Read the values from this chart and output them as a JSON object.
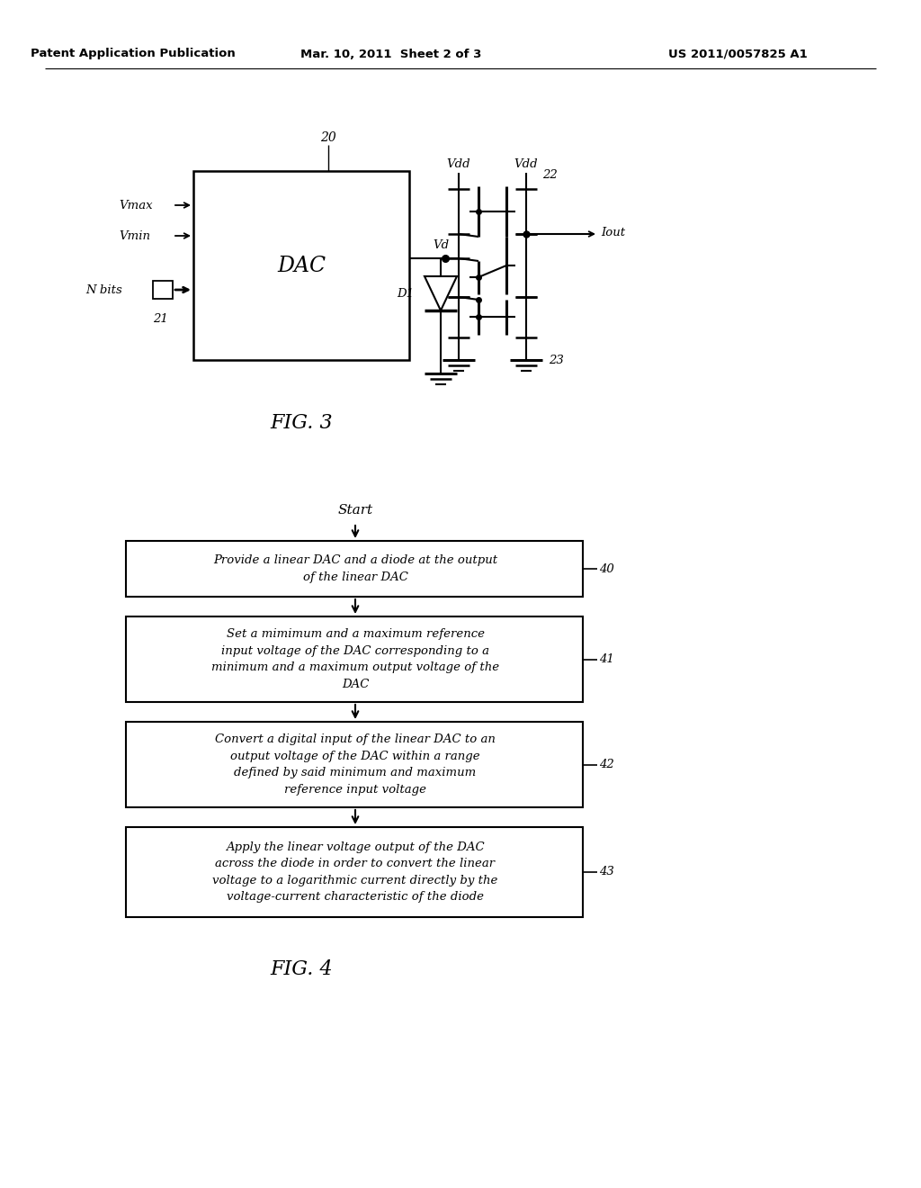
{
  "bg_color": "#ffffff",
  "header_left": "Patent Application Publication",
  "header_center": "Mar. 10, 2011  Sheet 2 of 3",
  "header_right": "US 2011/0057825 A1",
  "fig3_label": "FIG. 3",
  "fig4_label": "FIG. 4",
  "num20": "20",
  "dac_label": "DAC",
  "vmax_label": "Vmax",
  "vmin_label": "Vmin",
  "nbits_label": "N bits",
  "num21": "21",
  "vd_label": "Vd",
  "d1_label": "D1",
  "vdd1_label": "Vdd",
  "vdd2_label": "Vdd",
  "num22": "22",
  "iout_label": "Iout",
  "num23": "23",
  "flow_start": "Start",
  "flow_box40_text": "Provide a linear DAC and a diode at the output\nof the linear DAC",
  "flow_box41_text": "Set a mimimum and a maximum reference\ninput voltage of the DAC corresponding to a\nminimum and a maximum output voltage of the\nDAC",
  "flow_box42_text": "Convert a digital input of the linear DAC to an\noutput voltage of the DAC within a range\ndefined by said minimum and maximum\nreference input voltage",
  "flow_box43_text": "Apply the linear voltage output of the DAC\nacross the diode in order to convert the linear\nvoltage to a logarithmic current directly by the\nvoltage-current characteristic of the diode",
  "num40": "40",
  "num41": "41",
  "num42": "42",
  "num43": "43"
}
